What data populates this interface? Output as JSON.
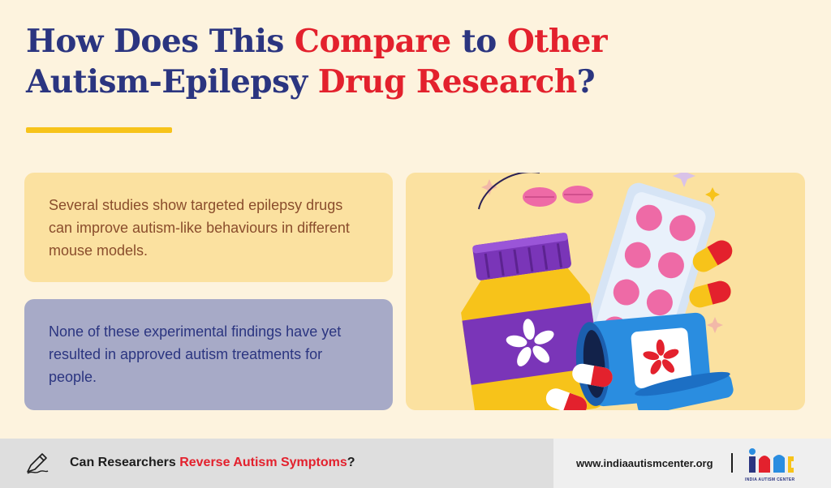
{
  "title": {
    "line1_part1": "How Does This ",
    "line1_part2": "Compare",
    "line1_part3": " to ",
    "line1_part4": "Other",
    "line2_part1": "Autism-Epilepsy ",
    "line2_part2": "Drug Research",
    "line2_part3": "?"
  },
  "cards": {
    "first": "Several studies show targeted epilepsy drugs can improve autism-like behaviours in different mouse models.",
    "second": "None of these experimental findings have yet resulted in approved autism treatments for people."
  },
  "footer": {
    "prefix": "Can Researchers ",
    "link": "Reverse Autism Symptoms",
    "suffix": "?",
    "website": "www.indiaautismcenter.org",
    "logo_label": "INDIA AUTISM CENTER"
  },
  "colors": {
    "navy": "#2b3580",
    "red": "#e3212d",
    "accent_yellow": "#f7c31a",
    "background": "#fdf3de"
  },
  "icons": {
    "illustration": "medicine-bottles-and-pills-illustration",
    "footer_icon": "pencil-writing-icon",
    "logo": "india-autism-center-logo"
  }
}
